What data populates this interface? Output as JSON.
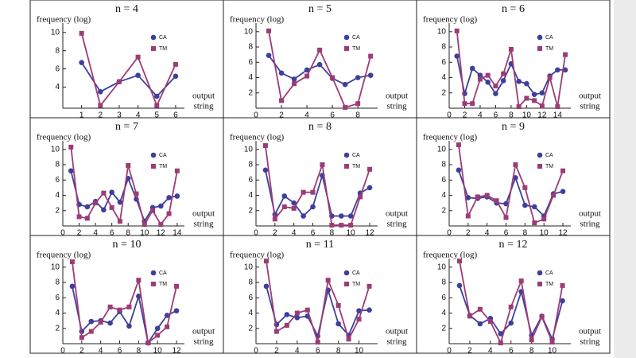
{
  "chart_data": [
    {
      "type": "line",
      "title": "n = 4",
      "ylabel": "frequency (log)",
      "xlabel": [
        "output",
        "string"
      ],
      "x": [
        1,
        2,
        3,
        4,
        5,
        6
      ],
      "xlim": [
        0,
        6.3
      ],
      "xticks": [
        1,
        2,
        3,
        4,
        5,
        6
      ],
      "ylim": [
        1.7,
        10.5
      ],
      "yticks": [
        4,
        6,
        8,
        10
      ],
      "series": [
        {
          "name": "CA",
          "color": "#3e3f9d",
          "marker": "circle",
          "values": [
            6.7,
            3.5,
            4.6,
            5.3,
            3.0,
            5.2
          ]
        },
        {
          "name": "TM",
          "color": "#9c3c76",
          "marker": "square",
          "values": [
            9.9,
            2.0,
            4.6,
            7.3,
            2.0,
            6.5
          ]
        }
      ]
    },
    {
      "type": "line",
      "title": "n = 5",
      "ylabel": "frequency (log)",
      "xlabel": [
        "output",
        "string"
      ],
      "x": [
        1,
        2,
        3,
        4,
        5,
        6,
        7,
        8,
        9
      ],
      "xlim": [
        0,
        9.3
      ],
      "xticks": [
        0,
        2,
        4,
        6,
        8
      ],
      "ylim": [
        0,
        10.5
      ],
      "yticks": [
        2,
        4,
        6,
        8,
        10
      ],
      "series": [
        {
          "name": "CA",
          "color": "#3e3f9d",
          "marker": "circle",
          "values": [
            6.9,
            4.6,
            3.8,
            5.0,
            5.7,
            3.9,
            3.1,
            4.0,
            4.3
          ]
        },
        {
          "name": "TM",
          "color": "#9c3c76",
          "marker": "square",
          "values": [
            10.1,
            1.0,
            3.2,
            4.2,
            7.6,
            4.0,
            0.1,
            0.6,
            6.8
          ]
        }
      ]
    },
    {
      "type": "line",
      "title": "n = 6",
      "ylabel": "frequency (log)",
      "xlabel": [
        "output",
        "string"
      ],
      "x": [
        1,
        2,
        3,
        4,
        5,
        6,
        7,
        8,
        9,
        10,
        11,
        12,
        13,
        14,
        15
      ],
      "xlim": [
        0,
        15.3
      ],
      "xticks": [
        0,
        2,
        4,
        6,
        8,
        10,
        12,
        14
      ],
      "ylim": [
        0,
        10.5
      ],
      "yticks": [
        2,
        4,
        6,
        8,
        10
      ],
      "series": [
        {
          "name": "CA",
          "color": "#3e3f9d",
          "marker": "circle",
          "values": [
            6.8,
            1.9,
            5.2,
            4.3,
            3.4,
            1.9,
            3.6,
            5.8,
            3.5,
            3.2,
            1.8,
            2.0,
            4.2,
            5.0,
            5.0
          ]
        },
        {
          "name": "TM",
          "color": "#9c3c76",
          "marker": "square",
          "values": [
            10.1,
            0.6,
            0.6,
            3.8,
            4.3,
            2.9,
            4.5,
            7.7,
            0.2,
            1.3,
            1.0,
            0.3,
            4.0,
            0.2,
            7.0
          ]
        }
      ]
    },
    {
      "type": "line",
      "title": "n = 7",
      "ylabel": "frequency (log)",
      "xlabel": [
        "output",
        "string"
      ],
      "x": [
        1,
        2,
        3,
        4,
        5,
        6,
        7,
        8,
        9,
        10,
        11,
        12,
        13,
        14
      ],
      "xlim": [
        0,
        14.5
      ],
      "xticks": [
        0,
        2,
        4,
        6,
        8,
        10,
        12,
        14
      ],
      "ylim": [
        0,
        10.5
      ],
      "yticks": [
        2,
        4,
        6,
        8,
        10
      ],
      "series": [
        {
          "name": "CA",
          "color": "#3e3f9d",
          "marker": "circle",
          "values": [
            7.2,
            2.8,
            2.5,
            3.2,
            2.1,
            4.4,
            3.1,
            6.2,
            3.5,
            0.6,
            2.4,
            2.6,
            3.7,
            3.9
          ]
        },
        {
          "name": "TM",
          "color": "#9c3c76",
          "marker": "square",
          "values": [
            10.3,
            1.2,
            1.0,
            3.0,
            4.3,
            2.4,
            0.6,
            7.9,
            4.2,
            0.2,
            2.0,
            0.2,
            1.6,
            7.2
          ]
        }
      ]
    },
    {
      "type": "line",
      "title": "n = 8",
      "ylabel": "frequency (log)",
      "xlabel": [
        "output",
        "string"
      ],
      "x": [
        1,
        2,
        3,
        4,
        5,
        6,
        7,
        8,
        9,
        10,
        11,
        12
      ],
      "xlim": [
        0,
        12.5
      ],
      "xticks": [
        0,
        2,
        4,
        6,
        8,
        10,
        12
      ],
      "ylim": [
        0,
        10.5
      ],
      "yticks": [
        2,
        4,
        6,
        8,
        10
      ],
      "series": [
        {
          "name": "CA",
          "color": "#3e3f9d",
          "marker": "circle",
          "values": [
            7.3,
            1.5,
            3.9,
            3.0,
            1.3,
            2.5,
            6.6,
            1.3,
            1.3,
            1.3,
            4.3,
            5.0
          ]
        },
        {
          "name": "TM",
          "color": "#9c3c76",
          "marker": "square",
          "values": [
            10.5,
            0.9,
            2.5,
            2.3,
            4.4,
            4.4,
            8.0,
            0.1,
            0.1,
            0.1,
            3.8,
            7.4
          ]
        }
      ]
    },
    {
      "type": "line",
      "title": "n = 9",
      "ylabel": "frequency (log)",
      "xlabel": [
        "output",
        "string"
      ],
      "x": [
        1,
        2,
        3,
        4,
        5,
        6,
        7,
        8,
        9,
        10,
        11,
        12
      ],
      "xlim": [
        0,
        12.5
      ],
      "xticks": [
        0,
        2,
        4,
        6,
        8,
        10,
        12
      ],
      "ylim": [
        0,
        10.5
      ],
      "yticks": [
        2,
        4,
        6,
        8,
        10
      ],
      "series": [
        {
          "name": "CA",
          "color": "#3e3f9d",
          "marker": "circle",
          "values": [
            7.3,
            3.7,
            3.6,
            3.8,
            3.0,
            2.9,
            6.3,
            2.7,
            2.5,
            1.3,
            4.2,
            4.5
          ]
        },
        {
          "name": "TM",
          "color": "#9c3c76",
          "marker": "square",
          "values": [
            10.6,
            1.3,
            3.8,
            4.0,
            3.3,
            1.1,
            8.0,
            5.0,
            0.4,
            0.9,
            4.0,
            7.2
          ]
        }
      ]
    },
    {
      "type": "line",
      "title": "n = 10",
      "ylabel": "frequency (log)",
      "xlabel": [
        "output",
        "string"
      ],
      "x": [
        1,
        2,
        3,
        4,
        5,
        6,
        7,
        8,
        9,
        10,
        11,
        12
      ],
      "xlim": [
        0,
        12.5
      ],
      "xticks": [
        0,
        2,
        4,
        6,
        8,
        10,
        12
      ],
      "ylim": [
        0,
        10.5
      ],
      "yticks": [
        2,
        4,
        6,
        8,
        10
      ],
      "series": [
        {
          "name": "CA",
          "color": "#3e3f9d",
          "marker": "circle",
          "values": [
            7.5,
            1.6,
            2.9,
            3.0,
            2.7,
            4.2,
            2.3,
            6.2,
            0.1,
            2.0,
            3.7,
            4.3
          ]
        },
        {
          "name": "TM",
          "color": "#9c3c76",
          "marker": "square",
          "values": [
            10.7,
            0.8,
            1.6,
            2.8,
            4.8,
            4.4,
            4.8,
            8.3,
            0.1,
            1.1,
            2.2,
            7.5
          ]
        }
      ]
    },
    {
      "type": "line",
      "title": "n = 11",
      "ylabel": "frequency (log)",
      "xlabel": [
        "output",
        "string"
      ],
      "x": [
        1,
        2,
        3,
        4,
        5,
        6,
        7,
        8,
        9,
        10,
        11
      ],
      "xlim": [
        0,
        11.5
      ],
      "xticks": [
        0,
        2,
        4,
        6,
        8,
        10
      ],
      "ylim": [
        0,
        10.5
      ],
      "yticks": [
        2,
        4,
        6,
        8,
        10
      ],
      "series": [
        {
          "name": "CA",
          "color": "#3e3f9d",
          "marker": "circle",
          "values": [
            7.5,
            2.5,
            3.8,
            3.4,
            3.6,
            1.0,
            7.0,
            2.6,
            1.1,
            4.3,
            4.4
          ]
        },
        {
          "name": "TM",
          "color": "#9c3c76",
          "marker": "square",
          "values": [
            10.8,
            1.6,
            2.4,
            4.0,
            4.4,
            0.2,
            8.3,
            5.0,
            0.6,
            3.2,
            7.5
          ]
        }
      ]
    },
    {
      "type": "line",
      "title": "n = 12",
      "ylabel": "frequency (log)",
      "xlabel": [
        "output",
        "string"
      ],
      "x": [
        1,
        2,
        3,
        4,
        5,
        6,
        7,
        8,
        9,
        10,
        11
      ],
      "xlim": [
        0,
        11.5
      ],
      "xticks": [
        0,
        2,
        4,
        6,
        8,
        10
      ],
      "ylim": [
        0,
        10.5
      ],
      "yticks": [
        2,
        4,
        6,
        8,
        10
      ],
      "series": [
        {
          "name": "CA",
          "color": "#3e3f9d",
          "marker": "circle",
          "values": [
            7.6,
            3.7,
            2.6,
            3.3,
            1.3,
            2.7,
            6.8,
            1.1,
            3.6,
            0.6,
            5.6
          ]
        },
        {
          "name": "TM",
          "color": "#9c3c76",
          "marker": "square",
          "values": [
            10.8,
            3.6,
            4.5,
            2.9,
            0.1,
            4.8,
            8.2,
            0.5,
            3.5,
            0.2,
            7.6
          ]
        }
      ]
    }
  ]
}
